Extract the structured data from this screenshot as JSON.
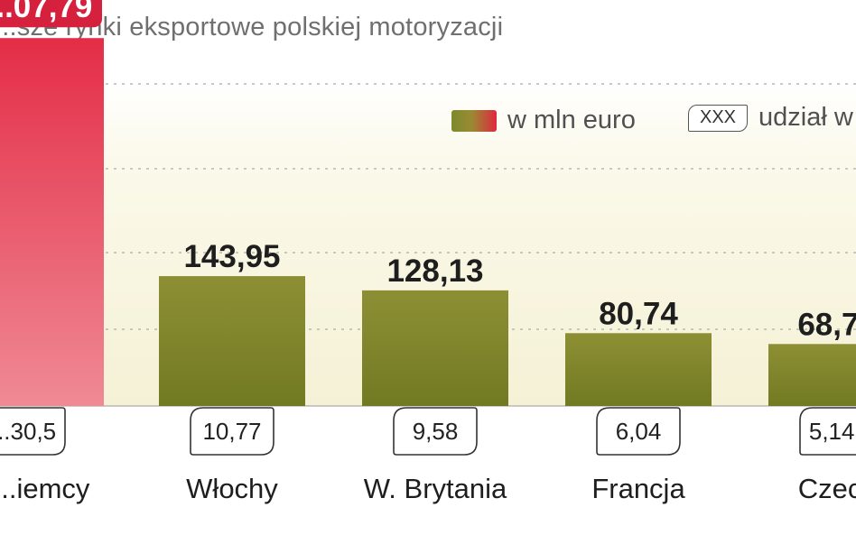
{
  "title": "...sze rynki eksportowe polskiej motoryzacji",
  "legend": {
    "value_label": "w mln euro",
    "share_sample": "XXX",
    "share_label": "udział w"
  },
  "colors": {
    "bar_green_top": "#8e8f34",
    "bar_green_bottom": "#717a22",
    "bar_red_top": "#e42d47",
    "bar_red_bottom": "#ef8a95",
    "label_red_bg": "#d5213d",
    "grid": "#b7b7b7"
  },
  "chart_data": {
    "type": "bar",
    "categories": [
      "...iemcy",
      "Włochy",
      "W. Brytania",
      "Francja",
      "Czec..."
    ],
    "values": [
      407.79,
      143.95,
      128.13,
      80.74,
      68.7
    ],
    "value_labels": [
      "...07,79",
      "143,95",
      "128,13",
      "80,74",
      "68,7..."
    ],
    "share_labels": [
      "...30,5",
      "10,77",
      "9,58",
      "6,04",
      "5,14..."
    ],
    "highlight_index": 0,
    "ylim": [
      0,
      450
    ],
    "grid": true,
    "legend_position": "top-right"
  }
}
